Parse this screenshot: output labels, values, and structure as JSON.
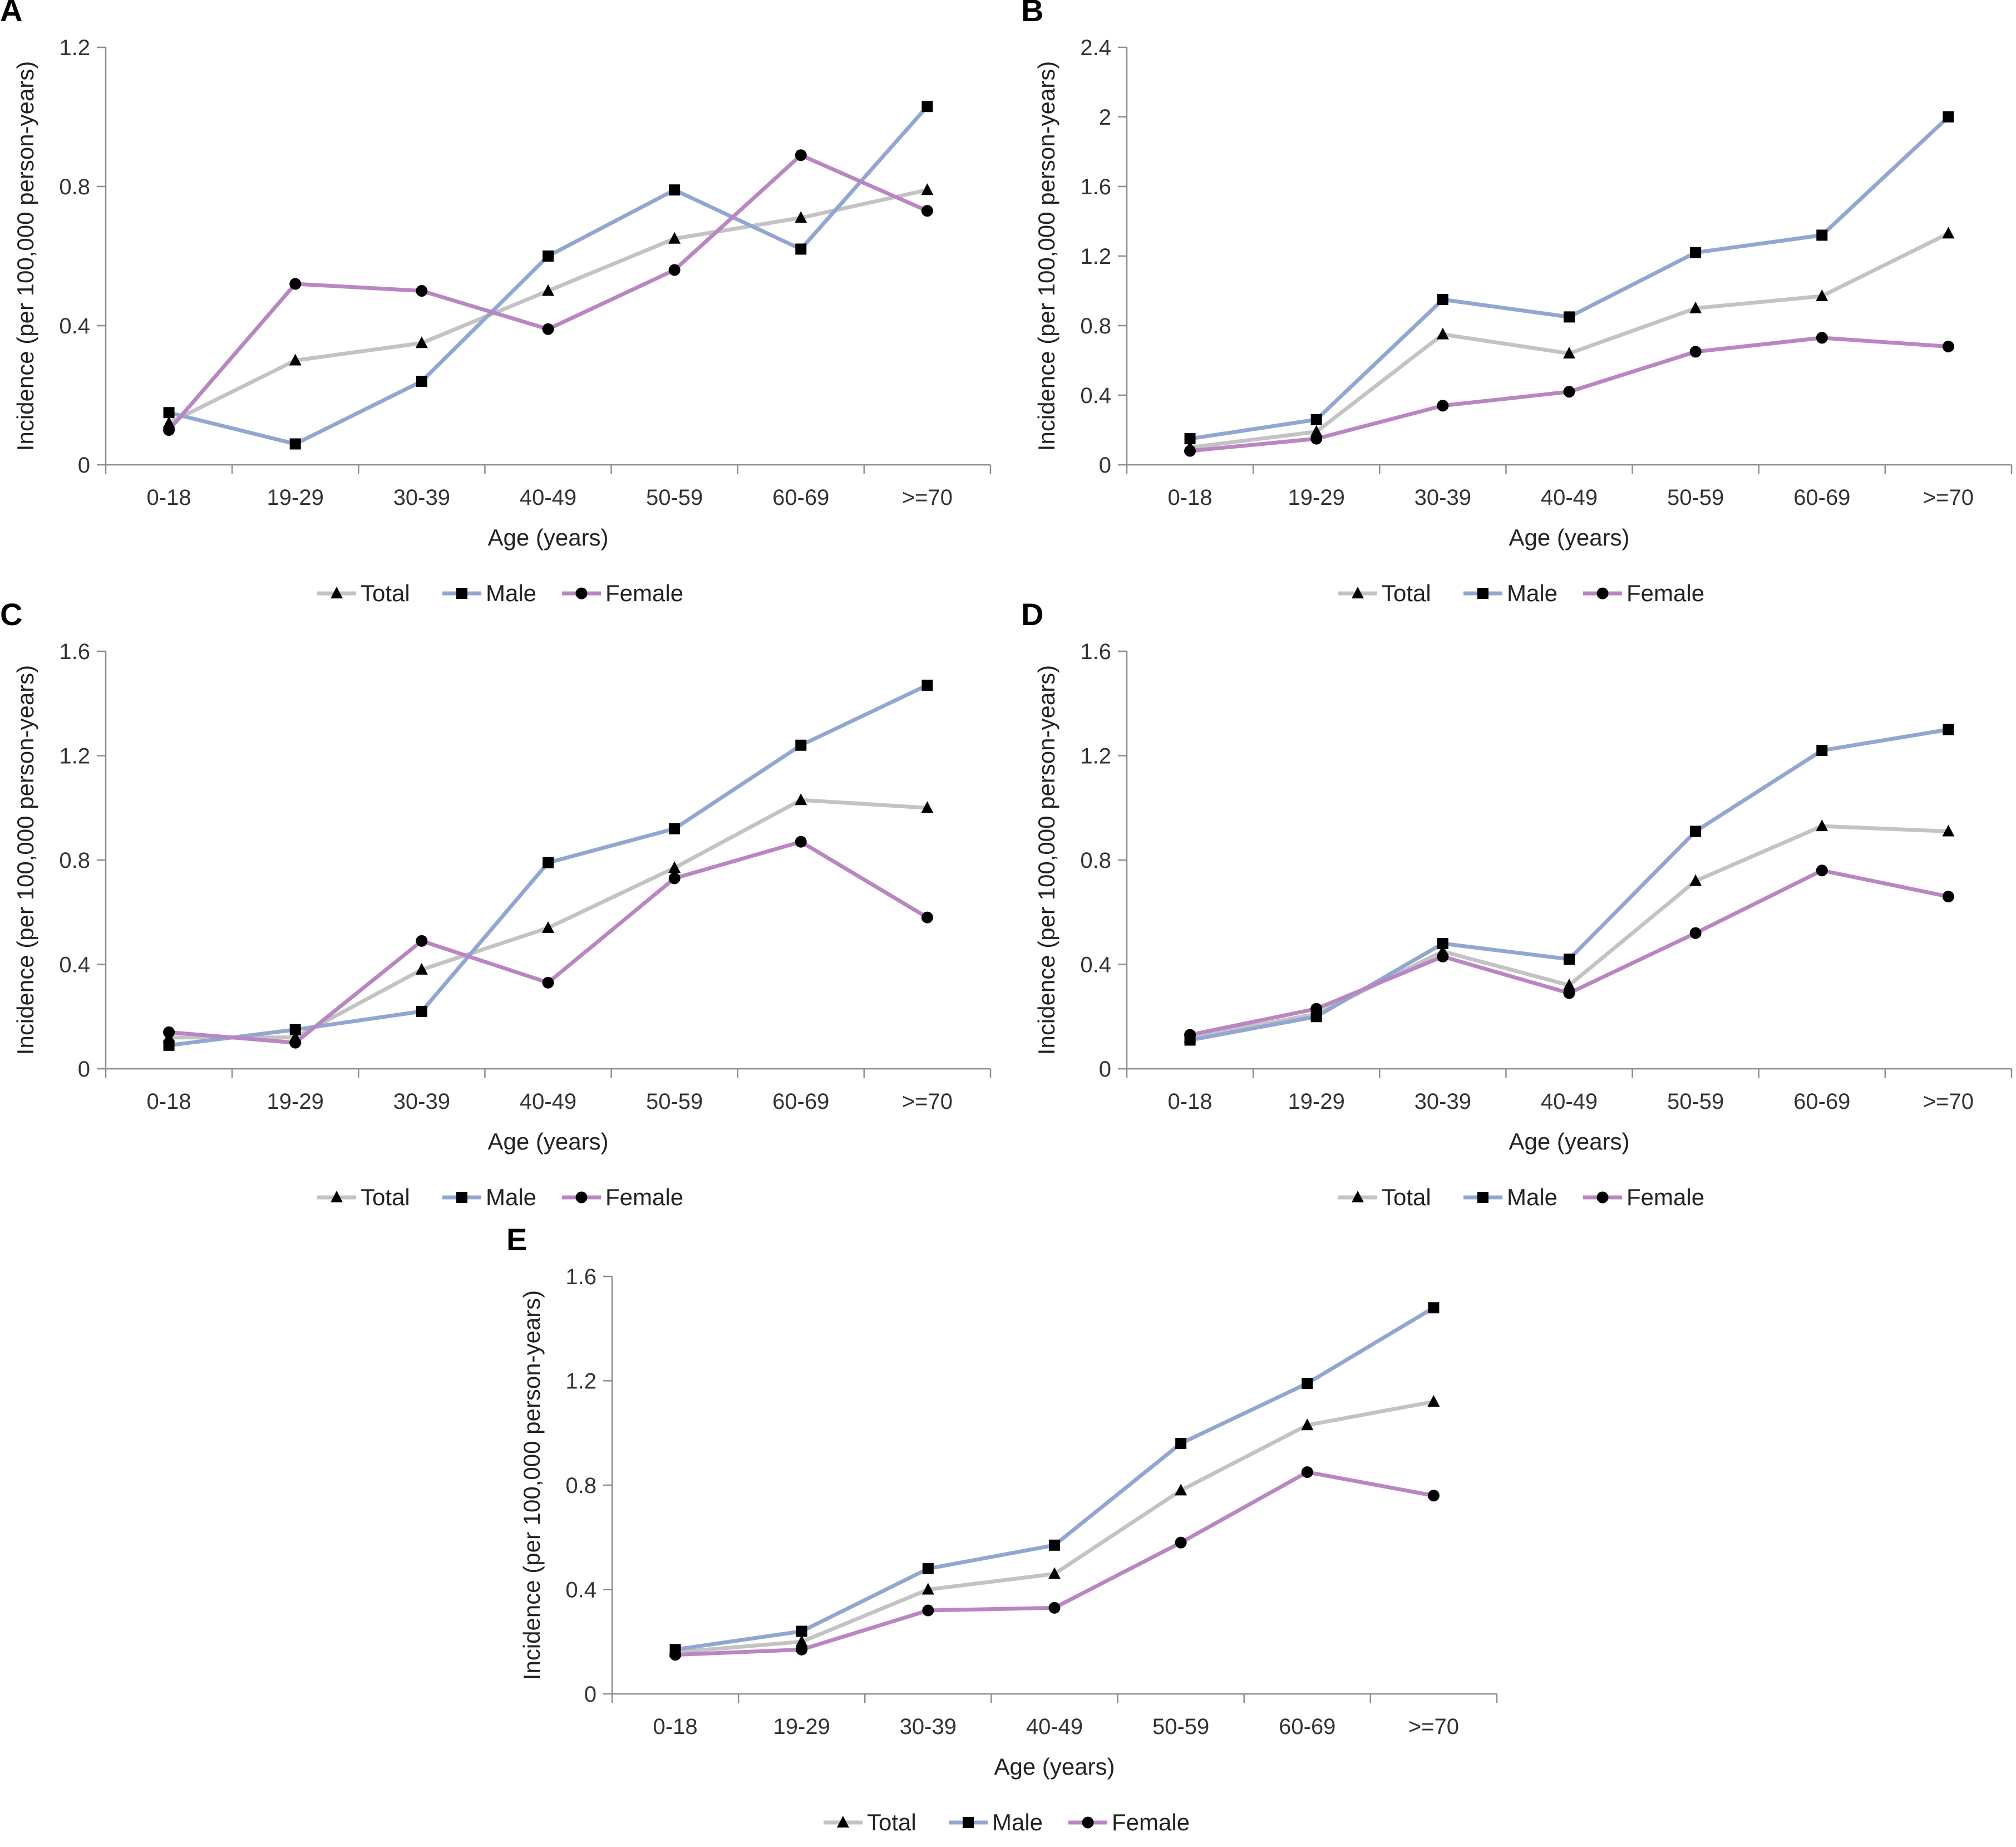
{
  "legend": {
    "total": "Total",
    "male": "Male",
    "female": "Female"
  },
  "colors": {
    "total": "#c3c3c3",
    "male": "#93a6d2",
    "female": "#b986c2",
    "axis": "#8c8c8c",
    "marker": "#000000"
  },
  "chart_data": [
    {
      "panel": "A",
      "type": "line",
      "categories": [
        "0-18",
        "19-29",
        "30-39",
        "40-49",
        "50-59",
        "60-69",
        ">=70"
      ],
      "xlabel": "Age (years)",
      "ylabel": "Incidence (per 100,000 person-years)",
      "ylim": [
        0,
        1.2
      ],
      "yticks": [
        0,
        0.4,
        0.8,
        1.2
      ],
      "ytick_labels": [
        "0",
        "0.4",
        "0.8",
        "1.2"
      ],
      "series": [
        {
          "name": "Total",
          "values": [
            0.12,
            0.3,
            0.35,
            0.5,
            0.65,
            0.71,
            0.79
          ]
        },
        {
          "name": "Male",
          "values": [
            0.15,
            0.06,
            0.24,
            0.6,
            0.79,
            0.62,
            1.03
          ]
        },
        {
          "name": "Female",
          "values": [
            0.1,
            0.52,
            0.5,
            0.39,
            0.56,
            0.89,
            0.73
          ]
        }
      ]
    },
    {
      "panel": "B",
      "type": "line",
      "categories": [
        "0-18",
        "19-29",
        "30-39",
        "40-49",
        "50-59",
        "60-69",
        ">=70"
      ],
      "xlabel": "Age (years)",
      "ylabel": "Incidence (per 100,000 person-years)",
      "ylim": [
        0,
        2.4
      ],
      "yticks": [
        0,
        0.4,
        0.8,
        1.2,
        1.6,
        2.0,
        2.4
      ],
      "ytick_labels": [
        "0",
        "0.4",
        "0.8",
        "1.2",
        "1.6",
        "2",
        "2.4"
      ],
      "series": [
        {
          "name": "Total",
          "values": [
            0.1,
            0.19,
            0.75,
            0.64,
            0.9,
            0.97,
            1.33
          ]
        },
        {
          "name": "Male",
          "values": [
            0.15,
            0.26,
            0.95,
            0.85,
            1.22,
            1.32,
            2.0
          ]
        },
        {
          "name": "Female",
          "values": [
            0.08,
            0.15,
            0.34,
            0.42,
            0.65,
            0.73,
            0.68
          ]
        }
      ]
    },
    {
      "panel": "C",
      "type": "line",
      "categories": [
        "0-18",
        "19-29",
        "30-39",
        "40-49",
        "50-59",
        "60-69",
        ">=70"
      ],
      "xlabel": "Age (years)",
      "ylabel": "Incidence (per 100,000 person-years)",
      "ylim": [
        0,
        1.6
      ],
      "yticks": [
        0,
        0.4,
        0.8,
        1.2,
        1.6
      ],
      "ytick_labels": [
        "0",
        "0.4",
        "0.8",
        "1.2",
        "1.6"
      ],
      "series": [
        {
          "name": "Total",
          "values": [
            0.12,
            0.12,
            0.38,
            0.54,
            0.77,
            1.03,
            1.0
          ]
        },
        {
          "name": "Male",
          "values": [
            0.09,
            0.15,
            0.22,
            0.79,
            0.92,
            1.24,
            1.47
          ]
        },
        {
          "name": "Female",
          "values": [
            0.14,
            0.1,
            0.49,
            0.33,
            0.73,
            0.87,
            0.58
          ]
        }
      ]
    },
    {
      "panel": "D",
      "type": "line",
      "categories": [
        "0-18",
        "19-29",
        "30-39",
        "40-49",
        "50-59",
        "60-69",
        ">=70"
      ],
      "xlabel": "Age (years)",
      "ylabel": "Incidence (per 100,000 person-years)",
      "ylim": [
        0,
        1.6
      ],
      "yticks": [
        0,
        0.4,
        0.8,
        1.2,
        1.6
      ],
      "ytick_labels": [
        "0",
        "0.4",
        "0.8",
        "1.2",
        "1.6"
      ],
      "series": [
        {
          "name": "Total",
          "values": [
            0.12,
            0.21,
            0.45,
            0.32,
            0.72,
            0.93,
            0.91
          ]
        },
        {
          "name": "Male",
          "values": [
            0.11,
            0.2,
            0.48,
            0.42,
            0.91,
            1.22,
            1.3
          ]
        },
        {
          "name": "Female",
          "values": [
            0.13,
            0.23,
            0.43,
            0.29,
            0.52,
            0.76,
            0.66
          ]
        }
      ]
    },
    {
      "panel": "E",
      "type": "line",
      "categories": [
        "0-18",
        "19-29",
        "30-39",
        "40-49",
        "50-59",
        "60-69",
        ">=70"
      ],
      "xlabel": "Age (years)",
      "ylabel": "Incidence (per 100,000 person-years)",
      "ylim": [
        0,
        1.6
      ],
      "yticks": [
        0,
        0.4,
        0.8,
        1.2,
        1.6
      ],
      "ytick_labels": [
        "0",
        "0.4",
        "0.8",
        "1.2",
        "1.6"
      ],
      "series": [
        {
          "name": "Total",
          "values": [
            0.16,
            0.2,
            0.4,
            0.46,
            0.78,
            1.03,
            1.12
          ]
        },
        {
          "name": "Male",
          "values": [
            0.17,
            0.24,
            0.48,
            0.57,
            0.96,
            1.19,
            1.48
          ]
        },
        {
          "name": "Female",
          "values": [
            0.15,
            0.17,
            0.32,
            0.33,
            0.58,
            0.85,
            0.76
          ]
        }
      ]
    }
  ]
}
